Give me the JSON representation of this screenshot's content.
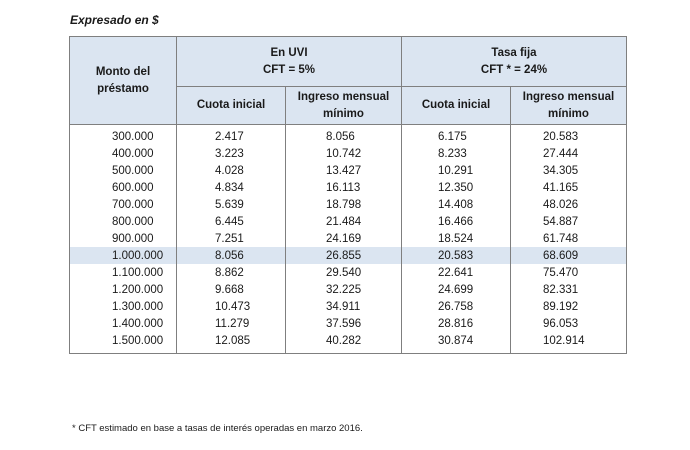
{
  "caption": "Expresado en $",
  "headers": {
    "monto": "Monto del préstamo",
    "uvi_title": "En UVI",
    "uvi_cft": "CFT = 5%",
    "fija_title": "Tasa fija",
    "fija_cft": "CFT * = 24%",
    "cuota_inicial": "Cuota inicial",
    "ingreso_minimo": "Ingreso mensual mínimo"
  },
  "rows": [
    {
      "monto": "300.000",
      "uvi_cuota": "2.417",
      "uvi_ingreso": "8.056",
      "fija_cuota": "6.175",
      "fija_ingreso": "20.583",
      "highlight": false
    },
    {
      "monto": "400.000",
      "uvi_cuota": "3.223",
      "uvi_ingreso": "10.742",
      "fija_cuota": "8.233",
      "fija_ingreso": "27.444",
      "highlight": false
    },
    {
      "monto": "500.000",
      "uvi_cuota": "4.028",
      "uvi_ingreso": "13.427",
      "fija_cuota": "10.291",
      "fija_ingreso": "34.305",
      "highlight": false
    },
    {
      "monto": "600.000",
      "uvi_cuota": "4.834",
      "uvi_ingreso": "16.113",
      "fija_cuota": "12.350",
      "fija_ingreso": "41.165",
      "highlight": false
    },
    {
      "monto": "700.000",
      "uvi_cuota": "5.639",
      "uvi_ingreso": "18.798",
      "fija_cuota": "14.408",
      "fija_ingreso": "48.026",
      "highlight": false
    },
    {
      "monto": "800.000",
      "uvi_cuota": "6.445",
      "uvi_ingreso": "21.484",
      "fija_cuota": "16.466",
      "fija_ingreso": "54.887",
      "highlight": false
    },
    {
      "monto": "900.000",
      "uvi_cuota": "7.251",
      "uvi_ingreso": "24.169",
      "fija_cuota": "18.524",
      "fija_ingreso": "61.748",
      "highlight": false
    },
    {
      "monto": "1.000.000",
      "uvi_cuota": "8.056",
      "uvi_ingreso": "26.855",
      "fija_cuota": "20.583",
      "fija_ingreso": "68.609",
      "highlight": true
    },
    {
      "monto": "1.100.000",
      "uvi_cuota": "8.862",
      "uvi_ingreso": "29.540",
      "fija_cuota": "22.641",
      "fija_ingreso": "75.470",
      "highlight": false
    },
    {
      "monto": "1.200.000",
      "uvi_cuota": "9.668",
      "uvi_ingreso": "32.225",
      "fija_cuota": "24.699",
      "fija_ingreso": "82.331",
      "highlight": false
    },
    {
      "monto": "1.300.000",
      "uvi_cuota": "10.473",
      "uvi_ingreso": "34.911",
      "fija_cuota": "26.758",
      "fija_ingreso": "89.192",
      "highlight": false
    },
    {
      "monto": "1.400.000",
      "uvi_cuota": "11.279",
      "uvi_ingreso": "37.596",
      "fija_cuota": "28.816",
      "fija_ingreso": "96.053",
      "highlight": false
    },
    {
      "monto": "1.500.000",
      "uvi_cuota": "12.085",
      "uvi_ingreso": "40.282",
      "fija_cuota": "30.874",
      "fija_ingreso": "102.914",
      "highlight": false
    }
  ],
  "footnote": "* CFT estimado en base a tasas de interés operadas en marzo 2016.",
  "colors": {
    "header_bg": "#dbe5f1",
    "border": "#7f7f7f"
  }
}
